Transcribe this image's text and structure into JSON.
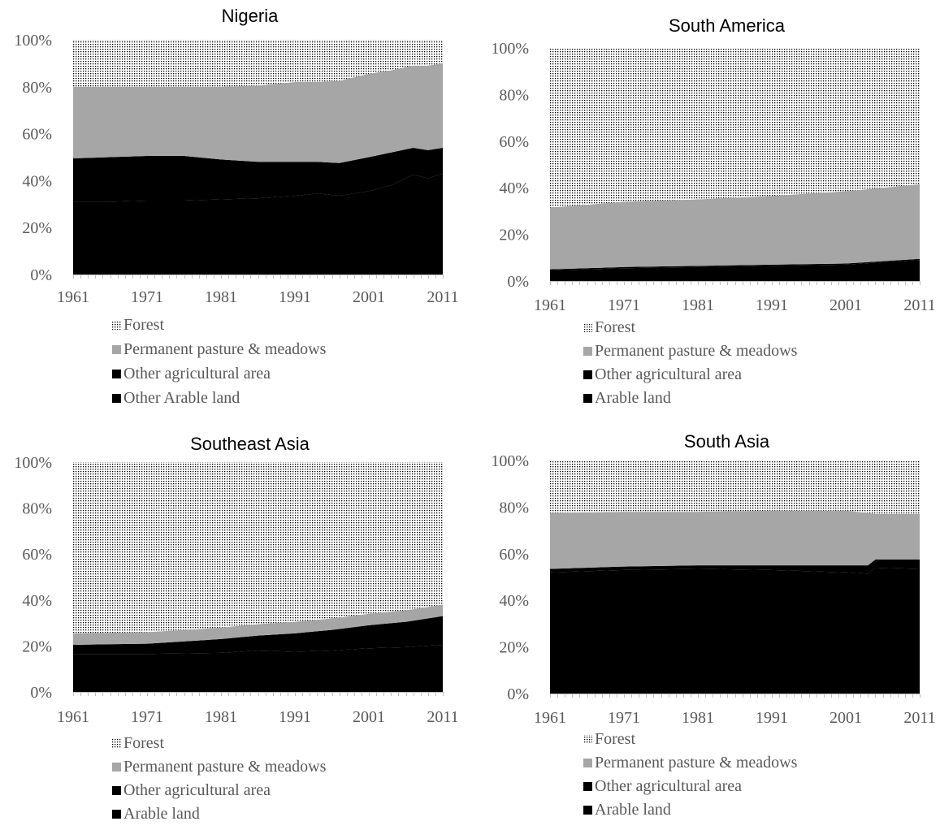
{
  "colors": {
    "forest_pattern_dot": "#000000",
    "forest_pattern_bg": "#ffffff",
    "permanent_pasture": "#a6a6a6",
    "other_agricultural": "#000000",
    "arable": "#000000",
    "text": "#595959",
    "axis": "#bfbfbf"
  },
  "chart_data": [
    {
      "type": "area",
      "stacked": true,
      "normalized_percent": true,
      "title": "Nigeria",
      "x_tick_labels": [
        "1961",
        "1971",
        "1981",
        "1991",
        "2001",
        "2011"
      ],
      "y_tick_labels": [
        "0%",
        "20%",
        "40%",
        "60%",
        "80%",
        "100%"
      ],
      "ylim": [
        0,
        100
      ],
      "x": [
        1961,
        1966,
        1971,
        1976,
        1981,
        1986,
        1991,
        1994,
        1997,
        2001,
        2004,
        2007,
        2009,
        2011
      ],
      "series": [
        {
          "name": "Other Arable land",
          "color": "#000000",
          "values": [
            31,
            31,
            31.5,
            31.5,
            32,
            32.5,
            33.5,
            34.5,
            33.5,
            35.5,
            38,
            42.5,
            41,
            43
          ]
        },
        {
          "name": "Other agricultural area",
          "color": "#000000",
          "values": [
            18.5,
            19,
            19,
            19,
            17,
            15.5,
            14.5,
            13.5,
            14,
            14.5,
            14,
            11.5,
            12,
            11
          ]
        },
        {
          "name": "Permanent pasture & meadows",
          "color": "#a6a6a6",
          "values": [
            30.5,
            30,
            29.5,
            29.5,
            31,
            32.5,
            34,
            34,
            35,
            35.5,
            35,
            35,
            36,
            36
          ]
        },
        {
          "name": "Forest",
          "pattern": "dots",
          "values": [
            20,
            20,
            20,
            20,
            20,
            19.5,
            18,
            18,
            17.5,
            14.5,
            13,
            11,
            11,
            10
          ]
        }
      ],
      "legend": [
        "Forest",
        "Permanent pasture & meadows",
        "Other agricultural area",
        "Other Arable land"
      ],
      "legend_placement": "bottom"
    },
    {
      "type": "area",
      "stacked": true,
      "normalized_percent": true,
      "title": "South America",
      "x_tick_labels": [
        "1961",
        "1971",
        "1981",
        "1991",
        "2001",
        "2011"
      ],
      "y_tick_labels": [
        "0%",
        "20%",
        "40%",
        "60%",
        "80%",
        "100%"
      ],
      "ylim": [
        0,
        100
      ],
      "x": [
        1961,
        1971,
        1981,
        1991,
        2001,
        2006,
        2011
      ],
      "series": [
        {
          "name": "Arable land",
          "color": "#000000",
          "values": [
            4.5,
            5.5,
            6,
            6.5,
            7,
            8,
            9
          ]
        },
        {
          "name": "Other agricultural area",
          "color": "#000000",
          "values": [
            0.5,
            0.5,
            0.5,
            0.5,
            0.5,
            0.5,
            0.5
          ]
        },
        {
          "name": "Permanent pasture & meadows",
          "color": "#a6a6a6",
          "values": [
            26.5,
            28,
            28.5,
            29.5,
            31,
            31.5,
            32
          ]
        },
        {
          "name": "Forest",
          "pattern": "dots",
          "values": [
            68.5,
            66,
            65,
            63.5,
            61.5,
            60,
            58.5
          ]
        }
      ],
      "legend": [
        "Forest",
        "Permanent pasture & meadows",
        "Other agricultural area",
        "Arable land"
      ],
      "legend_placement": "bottom"
    },
    {
      "type": "area",
      "stacked": true,
      "normalized_percent": true,
      "title": "Southeast Asia",
      "x_tick_labels": [
        "1961",
        "1971",
        "1981",
        "1991",
        "2001",
        "2011"
      ],
      "y_tick_labels": [
        "0%",
        "20%",
        "40%",
        "60%",
        "80%",
        "100%"
      ],
      "ylim": [
        0,
        100
      ],
      "x": [
        1961,
        1971,
        1981,
        1986,
        1991,
        1996,
        2001,
        2006,
        2011
      ],
      "series": [
        {
          "name": "Arable land",
          "color": "#000000",
          "values": [
            16.5,
            16.5,
            17,
            18,
            17.5,
            18,
            19,
            19.5,
            20.5
          ]
        },
        {
          "name": "Other agricultural area",
          "color": "#000000",
          "values": [
            4,
            4.5,
            6,
            6.5,
            8,
            9,
            10,
            11,
            12.5
          ]
        },
        {
          "name": "Permanent pasture & meadows",
          "color": "#a6a6a6",
          "values": [
            5,
            5,
            5,
            5,
            5,
            5,
            5,
            5,
            5
          ]
        },
        {
          "name": "Forest",
          "pattern": "dots",
          "values": [
            74.5,
            74,
            72,
            70.5,
            69.5,
            68,
            66,
            64.5,
            62
          ]
        }
      ],
      "legend": [
        "Forest",
        "Permanent pasture & meadows",
        "Other agricultural area",
        "Arable land"
      ],
      "legend_placement": "bottom"
    },
    {
      "type": "area",
      "stacked": true,
      "normalized_percent": true,
      "title": "South Asia",
      "x_tick_labels": [
        "1961",
        "1971",
        "1981",
        "1991",
        "2001",
        "2011"
      ],
      "y_tick_labels": [
        "0%",
        "20%",
        "40%",
        "60%",
        "80%",
        "100%"
      ],
      "ylim": [
        0,
        100
      ],
      "x": [
        1961,
        1971,
        1981,
        1991,
        2001,
        2004,
        2005,
        2011
      ],
      "series": [
        {
          "name": "Arable land",
          "color": "#000000",
          "values": [
            52,
            53,
            53.5,
            53,
            52,
            51.5,
            54,
            53.5
          ]
        },
        {
          "name": "Other agricultural area",
          "color": "#000000",
          "values": [
            1.5,
            1.5,
            1.5,
            2,
            3,
            3.5,
            3.5,
            4
          ]
        },
        {
          "name": "Permanent pasture & meadows",
          "color": "#a6a6a6",
          "values": [
            24,
            23.5,
            23,
            23.5,
            23.5,
            22.5,
            19.5,
            19.5
          ]
        },
        {
          "name": "Forest",
          "pattern": "dots",
          "values": [
            22.5,
            22,
            22,
            21.5,
            21.5,
            22.5,
            23,
            23
          ]
        }
      ],
      "legend": [
        "Forest",
        "Permanent pasture & meadows",
        "Other agricultural area",
        "Arable land"
      ],
      "legend_placement": "bottom"
    }
  ]
}
